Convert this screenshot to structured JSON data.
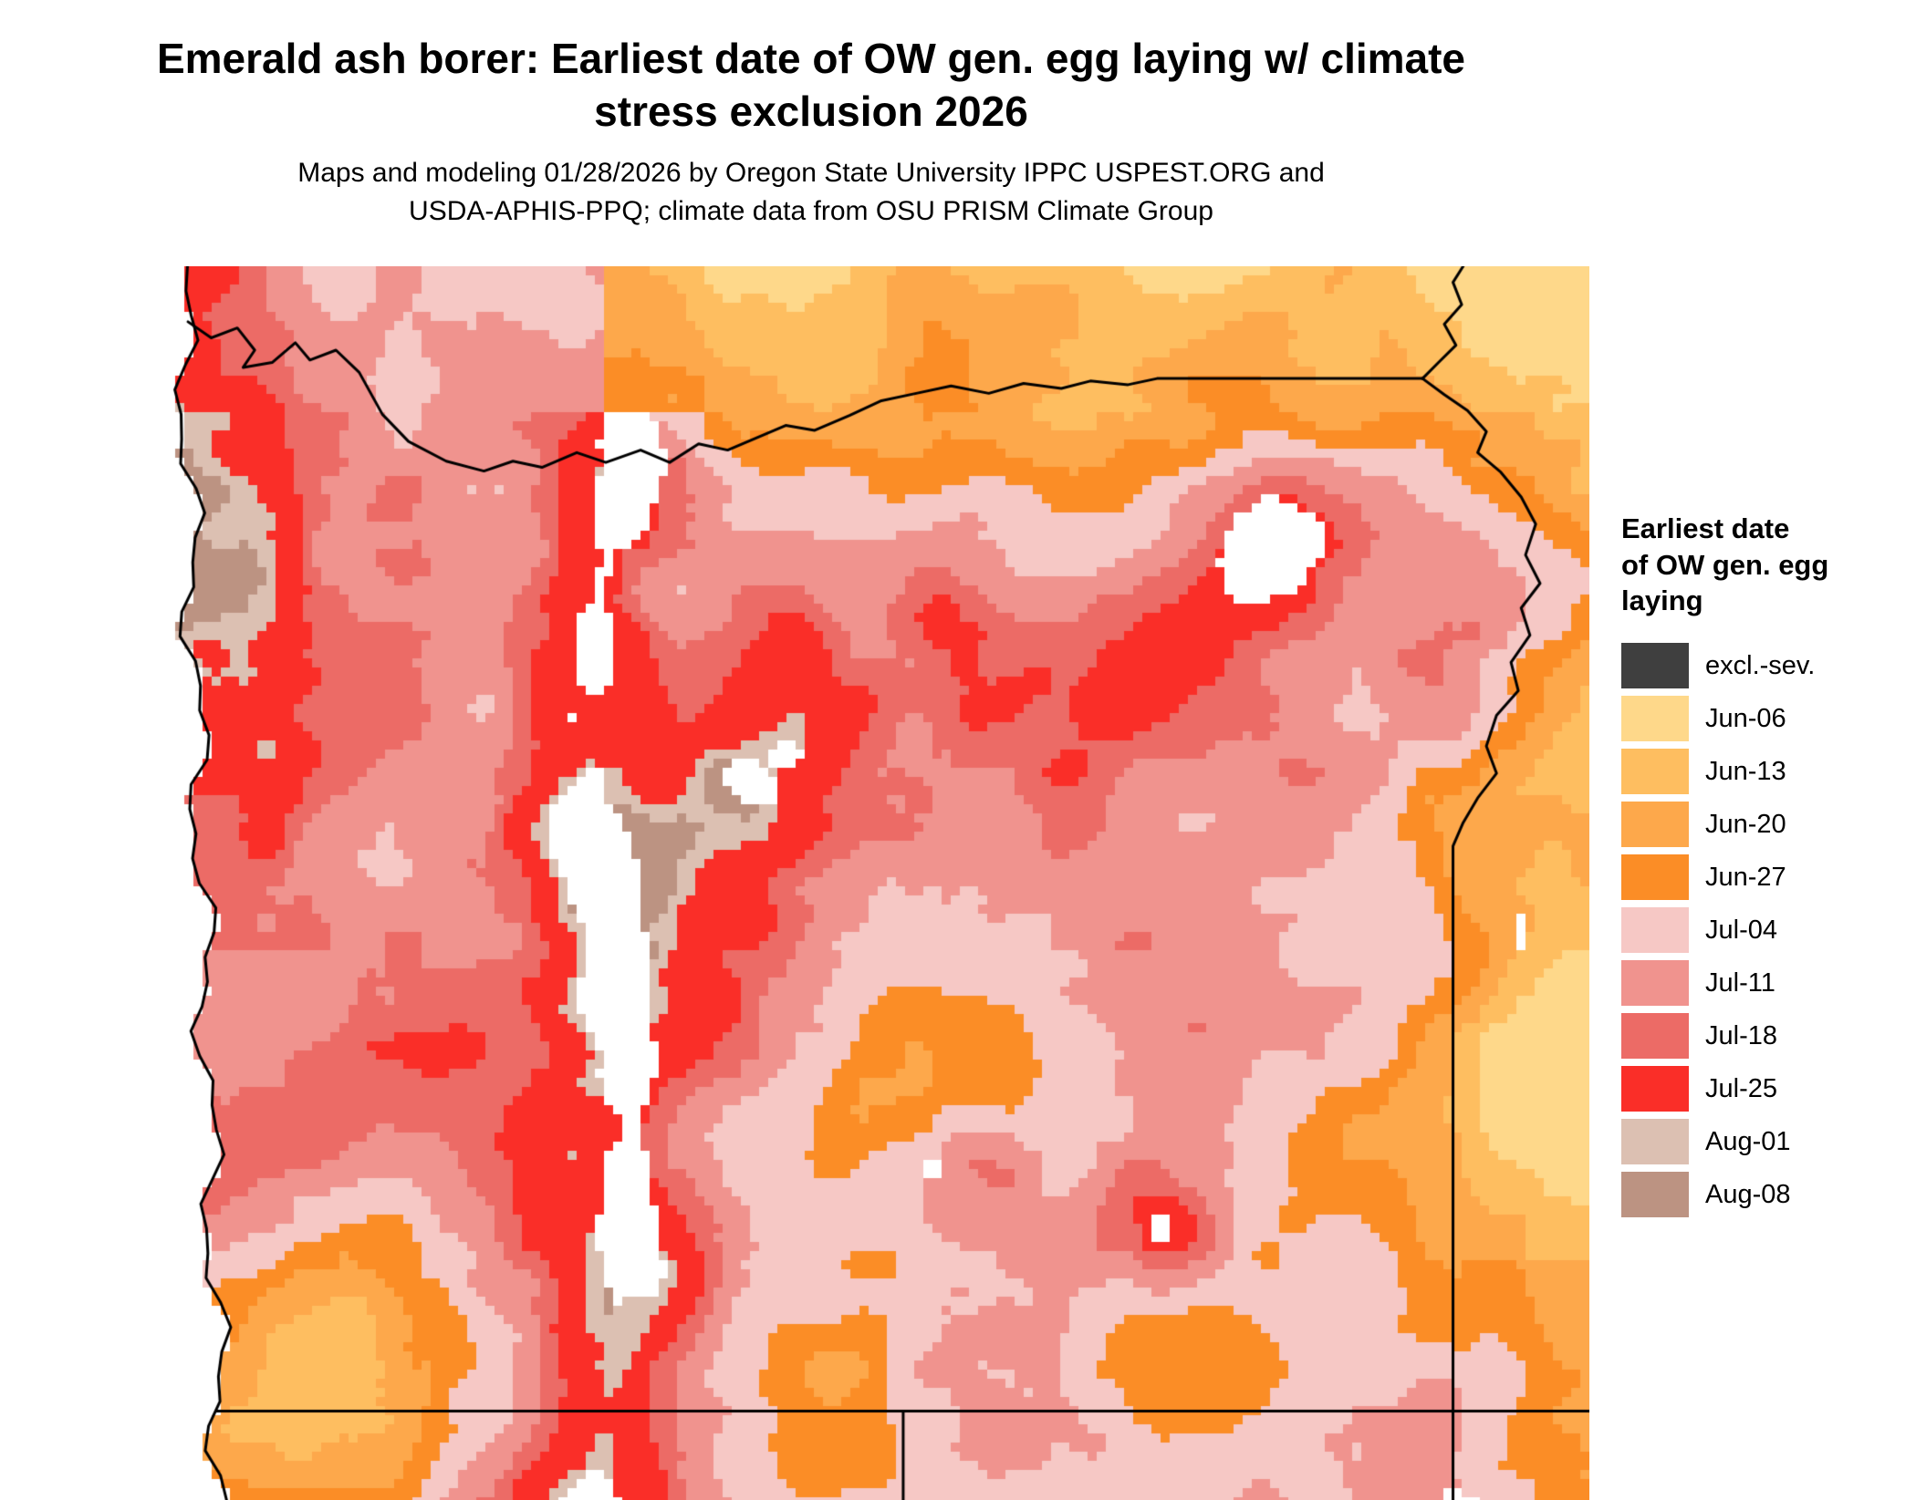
{
  "title": {
    "line1": "Emerald ash borer: Earliest date of OW gen. egg laying w/ climate",
    "line2": "stress exclusion 2026"
  },
  "subtitle": {
    "line1": "Maps and modeling 01/28/2026 by Oregon State University IPPC USPEST.ORG and",
    "line2": "USDA-APHIS-PPQ; climate data from OSU PRISM Climate Group"
  },
  "legend": {
    "title": "Earliest date\nof OW gen. egg\nlaying",
    "entries": [
      {
        "label": "excl.-sev.",
        "color": "#3F3F3F"
      },
      {
        "label": "Jun-06",
        "color": "#FED88A"
      },
      {
        "label": "Jun-13",
        "color": "#FEBE60"
      },
      {
        "label": "Jun-20",
        "color": "#FDA84B"
      },
      {
        "label": "Jun-27",
        "color": "#FB8D26"
      },
      {
        "label": "Jul-04",
        "color": "#F6C8C5"
      },
      {
        "label": "Jul-11",
        "color": "#F0938E"
      },
      {
        "label": "Jul-18",
        "color": "#EC6B66"
      },
      {
        "label": "Jul-25",
        "color": "#FA2E28"
      },
      {
        "label": "Aug-01",
        "color": "#DCC0B2"
      },
      {
        "label": "Aug-08",
        "color": "#BC9382"
      }
    ]
  },
  "map": {
    "region": "Oregon and adjacent states",
    "type": "raster-heatmap",
    "boundary_color": "#000000",
    "excluded_fill": "#FFFFFF"
  }
}
